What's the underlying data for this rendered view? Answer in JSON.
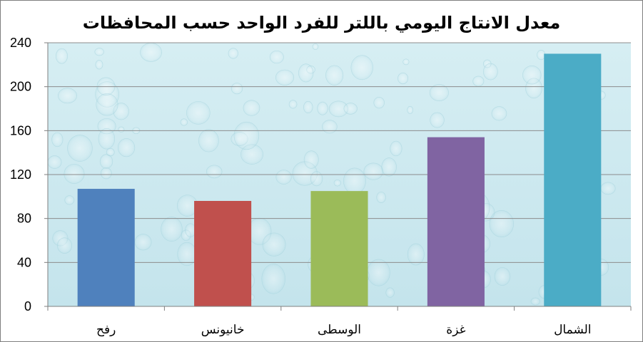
{
  "chart_data": {
    "type": "bar",
    "title": "معدل الانتاج اليومي باللتر للفرد الواحد حسب المحافظات",
    "categories": [
      "رفح",
      "خانيونس",
      "الوسطى",
      "غزة",
      "الشمال"
    ],
    "values": [
      107,
      96,
      105,
      154,
      230
    ],
    "colors": [
      "#4f81bd",
      "#c0504d",
      "#9bbb59",
      "#8064a2",
      "#4bacc6"
    ],
    "ylim": [
      0,
      240
    ],
    "yticks": [
      0,
      40,
      80,
      120,
      160,
      200,
      240
    ],
    "xlabel": "",
    "ylabel": "",
    "grid": true,
    "legend": "none",
    "plot_background": "#cde9ef",
    "gridline_color": "#8c8c8c"
  }
}
